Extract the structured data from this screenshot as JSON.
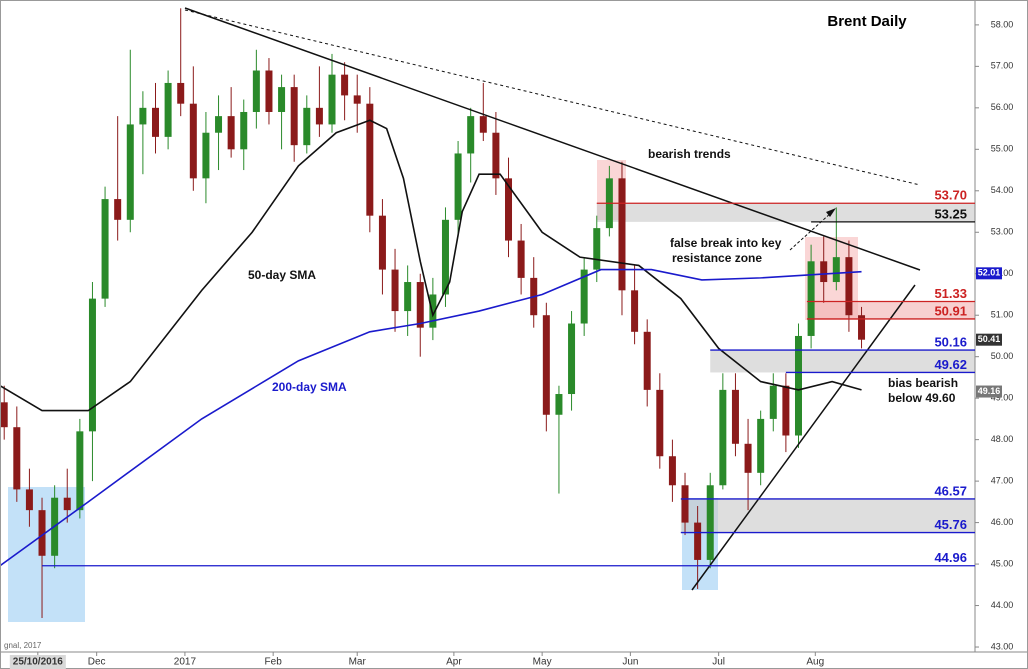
{
  "chart_data": {
    "type": "candlestick",
    "title": "Brent Daily",
    "up_color": "#2a8a2a",
    "down_color": "#8b1a1a",
    "xlim": [
      0,
      232
    ],
    "xticks": [
      {
        "value": 9,
        "label": "25/10/2016"
      },
      {
        "value": 23,
        "label": "Dec"
      },
      {
        "value": 44,
        "label": "2017"
      },
      {
        "value": 65,
        "label": "Feb"
      },
      {
        "value": 85,
        "label": "Mar"
      },
      {
        "value": 108,
        "label": "Apr"
      },
      {
        "value": 129,
        "label": "May"
      },
      {
        "value": 150,
        "label": "Jun"
      },
      {
        "value": 171,
        "label": "Jul"
      },
      {
        "value": 194,
        "label": "Aug"
      }
    ],
    "ylim": [
      42.88,
      58.6
    ],
    "yticks": [
      {
        "value": 43,
        "label": "43.00"
      },
      {
        "value": 44,
        "label": "44.00"
      },
      {
        "value": 45,
        "label": "45.00"
      },
      {
        "value": 46,
        "label": "46.00"
      },
      {
        "value": 47,
        "label": "47.00"
      },
      {
        "value": 48,
        "label": "48.00"
      },
      {
        "value": 49,
        "label": "49.00"
      },
      {
        "value": 50,
        "label": "50.00"
      },
      {
        "value": 51,
        "label": "51.00"
      },
      {
        "value": 52,
        "label": "52.00"
      },
      {
        "value": 53,
        "label": "53.00"
      },
      {
        "value": 54,
        "label": "54.00"
      },
      {
        "value": 55,
        "label": "55.00"
      },
      {
        "value": 56,
        "label": "56.00"
      },
      {
        "value": 57,
        "label": "57.00"
      },
      {
        "value": 58,
        "label": "58.00"
      }
    ],
    "x": [
      1,
      4,
      7,
      10,
      13,
      16,
      19,
      22,
      25,
      28,
      31,
      34,
      37,
      40,
      43,
      46,
      49,
      52,
      55,
      58,
      61,
      64,
      67,
      70,
      73,
      76,
      79,
      82,
      85,
      88,
      91,
      94,
      97,
      100,
      103,
      106,
      109,
      112,
      115,
      118,
      121,
      124,
      127,
      130,
      133,
      136,
      139,
      142,
      145,
      148,
      151,
      154,
      157,
      160,
      163,
      166,
      169,
      172,
      175,
      178,
      181,
      184,
      187,
      190,
      193,
      196,
      199,
      202,
      205
    ],
    "open": [
      48.9,
      48.3,
      46.8,
      46.3,
      45.2,
      46.6,
      46.3,
      48.2,
      51.4,
      53.8,
      53.3,
      55.6,
      56.0,
      55.3,
      56.6,
      56.1,
      54.3,
      55.4,
      55.8,
      55.0,
      55.9,
      56.9,
      55.9,
      56.5,
      55.1,
      56.0,
      55.6,
      56.8,
      56.3,
      56.1,
      53.4,
      52.1,
      51.1,
      51.8,
      50.7,
      51.5,
      53.3,
      54.9,
      55.8,
      55.4,
      54.3,
      52.8,
      51.9,
      51.0,
      48.6,
      49.1,
      50.8,
      52.1,
      53.1,
      54.3,
      51.6,
      50.6,
      49.2,
      47.6,
      46.9,
      46.0,
      45.1,
      46.9,
      49.2,
      47.9,
      47.2,
      48.5,
      49.3,
      48.1,
      50.5,
      52.3,
      51.8,
      52.4,
      51.0
    ],
    "high": [
      49.3,
      48.8,
      47.3,
      46.6,
      46.9,
      47.3,
      48.5,
      51.8,
      54.1,
      55.8,
      57.4,
      56.4,
      56.6,
      56.9,
      58.4,
      57.0,
      55.9,
      56.3,
      56.5,
      56.2,
      57.4,
      57.2,
      56.8,
      56.8,
      56.3,
      57.0,
      57.3,
      57.1,
      56.8,
      56.5,
      53.8,
      52.6,
      52.2,
      52.0,
      51.9,
      53.6,
      55.2,
      56.0,
      56.6,
      55.9,
      54.8,
      53.2,
      52.4,
      51.3,
      49.3,
      51.1,
      52.4,
      53.4,
      54.6,
      54.7,
      52.2,
      50.9,
      49.6,
      48.0,
      47.2,
      46.4,
      47.2,
      49.6,
      49.6,
      48.5,
      48.7,
      49.6,
      49.6,
      50.8,
      52.7,
      52.9,
      53.6,
      52.8,
      51.2
    ],
    "low": [
      48.0,
      46.5,
      45.9,
      43.7,
      44.9,
      46.0,
      46.1,
      47.0,
      51.2,
      52.8,
      53.0,
      54.4,
      54.9,
      55.0,
      55.8,
      54.0,
      53.7,
      54.5,
      54.8,
      54.5,
      55.5,
      55.6,
      55.0,
      54.7,
      54.9,
      55.3,
      55.4,
      55.7,
      55.4,
      53.0,
      51.5,
      50.6,
      50.5,
      50.0,
      50.4,
      51.2,
      52.9,
      54.2,
      55.2,
      53.9,
      52.4,
      51.5,
      50.7,
      48.2,
      46.7,
      48.7,
      50.5,
      51.8,
      52.9,
      51.0,
      50.3,
      48.8,
      47.3,
      46.5,
      45.7,
      44.4,
      44.9,
      46.8,
      47.6,
      46.3,
      46.9,
      48.2,
      47.7,
      47.8,
      50.2,
      51.3,
      51.6,
      50.6,
      50.2
    ],
    "close": [
      48.3,
      46.8,
      46.3,
      45.2,
      46.6,
      46.3,
      48.2,
      51.4,
      53.8,
      53.3,
      55.6,
      56.0,
      55.3,
      56.6,
      56.1,
      54.3,
      55.4,
      55.8,
      55.0,
      55.9,
      56.9,
      55.9,
      56.5,
      55.1,
      56.0,
      55.6,
      56.8,
      56.3,
      56.1,
      53.4,
      52.1,
      51.1,
      51.8,
      50.7,
      51.5,
      53.3,
      54.9,
      55.8,
      55.4,
      54.3,
      52.8,
      51.9,
      51.0,
      48.6,
      49.1,
      50.8,
      52.1,
      53.1,
      54.3,
      51.6,
      50.6,
      49.2,
      47.6,
      46.9,
      46.0,
      45.1,
      46.9,
      49.2,
      47.9,
      47.2,
      48.5,
      49.3,
      48.1,
      50.5,
      52.3,
      51.8,
      52.4,
      51.0,
      50.41
    ],
    "series": [
      {
        "name": "50-day SMA",
        "color": "#111111",
        "x": [
          0,
          10,
          21,
          31,
          48,
          60,
          71,
          80,
          88,
          92,
          96,
          100,
          103,
          107,
          110,
          114,
          119,
          129,
          138,
          152,
          162,
          171,
          181,
          190,
          198,
          205
        ],
        "values": [
          49.3,
          48.7,
          48.7,
          49.4,
          51.6,
          53.0,
          54.6,
          55.4,
          55.7,
          55.5,
          54.3,
          52.3,
          51.0,
          51.8,
          53.5,
          54.4,
          54.4,
          53.0,
          52.4,
          52.2,
          51.4,
          50.2,
          49.4,
          49.2,
          49.4,
          49.2
        ]
      },
      {
        "name": "200-day SMA",
        "color": "#1a1acc",
        "x": [
          0,
          21,
          48,
          71,
          88,
          100,
          114,
          129,
          143,
          155,
          167,
          181,
          205
        ],
        "values": [
          44.96,
          46.5,
          48.5,
          49.9,
          50.6,
          50.8,
          51.1,
          51.5,
          52.1,
          52.1,
          51.85,
          51.9,
          52.05
        ]
      }
    ],
    "levels": [
      {
        "value": 53.7,
        "label": "53.70",
        "color": "#cc2222",
        "start": 142
      },
      {
        "value": 53.25,
        "label": "53.25",
        "color": "#111111",
        "start": 193
      },
      {
        "value": 51.33,
        "label": "51.33",
        "color": "#cc2222",
        "start": 192
      },
      {
        "value": 50.91,
        "label": "50.91",
        "color": "#cc2222",
        "start": 192
      },
      {
        "value": 50.16,
        "label": "50.16",
        "color": "#1a1acc",
        "start": 169
      },
      {
        "value": 49.62,
        "label": "49.62",
        "color": "#1a1acc",
        "start": 187
      },
      {
        "value": 46.57,
        "label": "46.57",
        "color": "#1a1acc",
        "start": 162
      },
      {
        "value": 45.76,
        "label": "45.76",
        "color": "#1a1acc",
        "start": 162
      },
      {
        "value": 44.96,
        "label": "44.96",
        "color": "#1a1acc",
        "start": 10
      }
    ],
    "price_tags": [
      {
        "value": 52.01,
        "label": "52.01",
        "color": "#1a1acc"
      },
      {
        "value": 50.41,
        "label": "50.41",
        "color": "#333333"
      },
      {
        "value": 49.16,
        "label": "49.16",
        "color": "#777777"
      }
    ],
    "annotations": [
      "bearish trends",
      "false break into key",
      "resistance zone",
      "bias bearish",
      "below 49.60"
    ],
    "footer": "gnal, 2017"
  }
}
